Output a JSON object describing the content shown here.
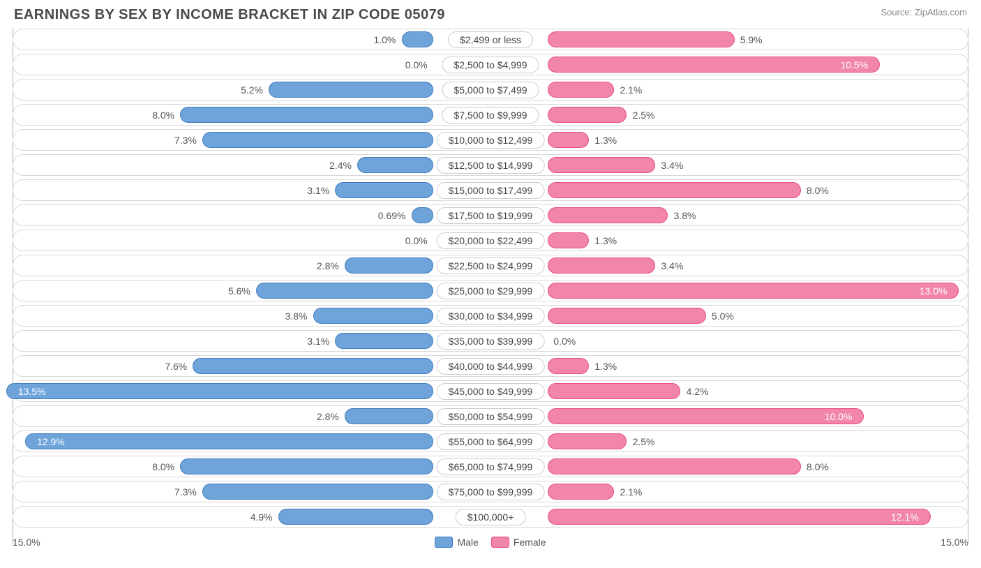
{
  "title": "EARNINGS BY SEX BY INCOME BRACKET IN ZIP CODE 05079",
  "source": "Source: ZipAtlas.com",
  "axis_max": 15.0,
  "axis_label_left": "15.0%",
  "axis_label_right": "15.0%",
  "colors": {
    "male": "#6fa4db",
    "male_border": "#3f7bbf",
    "female": "#f185ab",
    "female_border": "#e94e86",
    "track_border": "#d8d8d8",
    "text": "#555555",
    "title": "#4a4a4a",
    "source": "#888888",
    "bg": "#ffffff"
  },
  "legend": {
    "male": "Male",
    "female": "Female"
  },
  "label_half_width_pct": 6.0,
  "rows": [
    {
      "label": "$2,499 or less",
      "male": 1.0,
      "male_txt": "1.0%",
      "female": 5.9,
      "female_txt": "5.9%"
    },
    {
      "label": "$2,500 to $4,999",
      "male": 0.0,
      "male_txt": "0.0%",
      "female": 10.5,
      "female_txt": "10.5%"
    },
    {
      "label": "$5,000 to $7,499",
      "male": 5.2,
      "male_txt": "5.2%",
      "female": 2.1,
      "female_txt": "2.1%"
    },
    {
      "label": "$7,500 to $9,999",
      "male": 8.0,
      "male_txt": "8.0%",
      "female": 2.5,
      "female_txt": "2.5%"
    },
    {
      "label": "$10,000 to $12,499",
      "male": 7.3,
      "male_txt": "7.3%",
      "female": 1.3,
      "female_txt": "1.3%"
    },
    {
      "label": "$12,500 to $14,999",
      "male": 2.4,
      "male_txt": "2.4%",
      "female": 3.4,
      "female_txt": "3.4%"
    },
    {
      "label": "$15,000 to $17,499",
      "male": 3.1,
      "male_txt": "3.1%",
      "female": 8.0,
      "female_txt": "8.0%"
    },
    {
      "label": "$17,500 to $19,999",
      "male": 0.69,
      "male_txt": "0.69%",
      "female": 3.8,
      "female_txt": "3.8%"
    },
    {
      "label": "$20,000 to $22,499",
      "male": 0.0,
      "male_txt": "0.0%",
      "female": 1.3,
      "female_txt": "1.3%"
    },
    {
      "label": "$22,500 to $24,999",
      "male": 2.8,
      "male_txt": "2.8%",
      "female": 3.4,
      "female_txt": "3.4%"
    },
    {
      "label": "$25,000 to $29,999",
      "male": 5.6,
      "male_txt": "5.6%",
      "female": 13.0,
      "female_txt": "13.0%"
    },
    {
      "label": "$30,000 to $34,999",
      "male": 3.8,
      "male_txt": "3.8%",
      "female": 5.0,
      "female_txt": "5.0%"
    },
    {
      "label": "$35,000 to $39,999",
      "male": 3.1,
      "male_txt": "3.1%",
      "female": 0.0,
      "female_txt": "0.0%"
    },
    {
      "label": "$40,000 to $44,999",
      "male": 7.6,
      "male_txt": "7.6%",
      "female": 1.3,
      "female_txt": "1.3%"
    },
    {
      "label": "$45,000 to $49,999",
      "male": 13.5,
      "male_txt": "13.5%",
      "female": 4.2,
      "female_txt": "4.2%"
    },
    {
      "label": "$50,000 to $54,999",
      "male": 2.8,
      "male_txt": "2.8%",
      "female": 10.0,
      "female_txt": "10.0%"
    },
    {
      "label": "$55,000 to $64,999",
      "male": 12.9,
      "male_txt": "12.9%",
      "female": 2.5,
      "female_txt": "2.5%"
    },
    {
      "label": "$65,000 to $74,999",
      "male": 8.0,
      "male_txt": "8.0%",
      "female": 8.0,
      "female_txt": "8.0%"
    },
    {
      "label": "$75,000 to $99,999",
      "male": 7.3,
      "male_txt": "7.3%",
      "female": 2.1,
      "female_txt": "2.1%"
    },
    {
      "label": "$100,000+",
      "male": 4.9,
      "male_txt": "4.9%",
      "female": 12.1,
      "female_txt": "12.1%"
    }
  ]
}
